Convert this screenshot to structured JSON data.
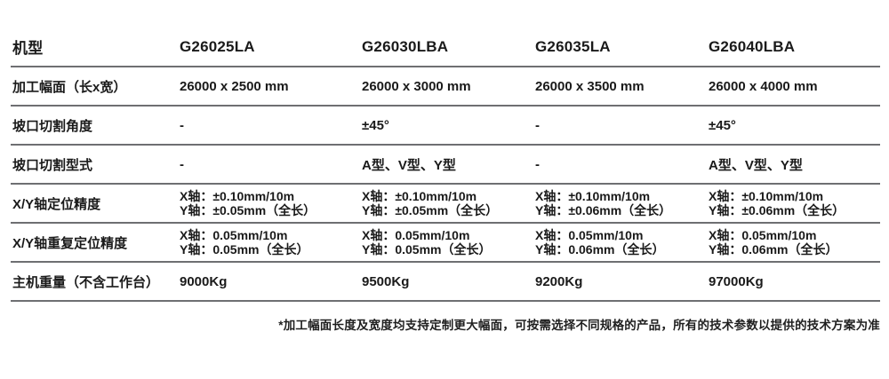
{
  "page": {
    "background_color": "#ffffff",
    "text_color": "#1a1a1a",
    "divider_color": "#6e6f72"
  },
  "table": {
    "header": {
      "label": "机型",
      "models": [
        "G26025LA",
        "G26030LBA",
        "G26035LA",
        "G26040LBA"
      ]
    },
    "rows": [
      {
        "label": "加工幅面（长x宽）",
        "cells": [
          "26000 x 2500 mm",
          "26000 x 3000 mm",
          "26000 x 3500 mm",
          "26000 x 4000 mm"
        ]
      },
      {
        "label": "坡口切割角度",
        "cells": [
          "-",
          "±45°",
          "-",
          "±45°"
        ]
      },
      {
        "label": "坡口切割型式",
        "cells": [
          "-",
          "A型、V型、Y型",
          "-",
          "A型、V型、Y型"
        ]
      },
      {
        "label": "X/Y轴定位精度",
        "cells": [
          "X轴：±0.10mm/10m\nY轴：±0.05mm（全长）",
          "X轴：±0.10mm/10m\nY轴：±0.05mm（全长）",
          "X轴：±0.10mm/10m\nY轴：±0.06mm（全长）",
          "X轴：±0.10mm/10m\nY轴：±0.06mm（全长）"
        ]
      },
      {
        "label": "X/Y轴重复定位精度",
        "cells": [
          "X轴：0.05mm/10m\nY轴：0.05mm（全长）",
          "X轴：0.05mm/10m\nY轴：0.05mm（全长）",
          "X轴：0.05mm/10m\nY轴：0.06mm（全长）",
          "X轴：0.05mm/10m\nY轴：0.06mm（全长）"
        ]
      },
      {
        "label": "主机重量（不含工作台）",
        "cells": [
          "9000Kg",
          "9500Kg",
          "9200Kg",
          "97000Kg"
        ]
      }
    ],
    "footnote": "*加工幅面长度及宽度均支持定制更大幅面，可按需选择不同规格的产品，所有的技术参数以提供的技术方案为准"
  }
}
